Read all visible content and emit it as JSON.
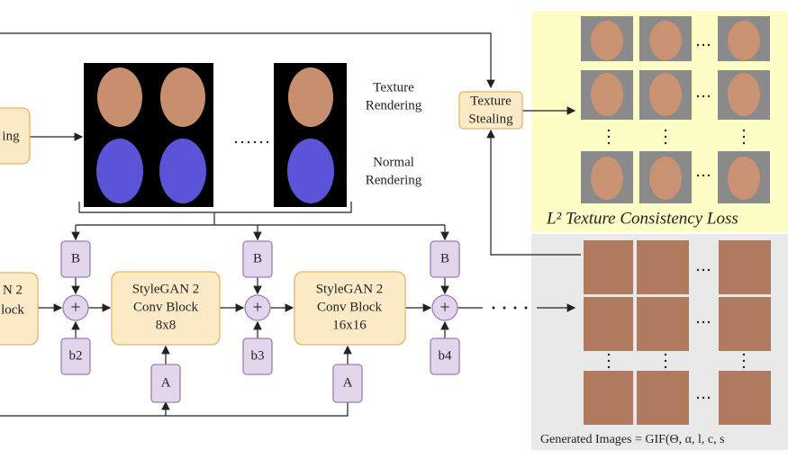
{
  "rendering_box": [
    "ing"
  ],
  "texture_rendering": [
    "Texture",
    "Rendering"
  ],
  "normal_rendering": [
    "Normal",
    "Rendering"
  ],
  "texture_stealing": [
    "Texture",
    "Stealing"
  ],
  "loss_label": "L² Texture Consistency Loss",
  "left_block": [
    "N 2",
    "lock"
  ],
  "block_8": [
    "StyleGAN 2",
    "Conv Block",
    "8x8"
  ],
  "block_16": [
    "StyleGAN 2",
    "Conv Block",
    "16x16"
  ],
  "b_boxes": [
    "B",
    "B",
    "B"
  ],
  "bias": [
    "b2",
    "b3",
    "b4"
  ],
  "a_boxes": [
    "A",
    "A"
  ],
  "operators": [
    "+",
    "+",
    "+"
  ],
  "generated_label": "Generated Images = GIF(Θ, α, l, c, s"
}
